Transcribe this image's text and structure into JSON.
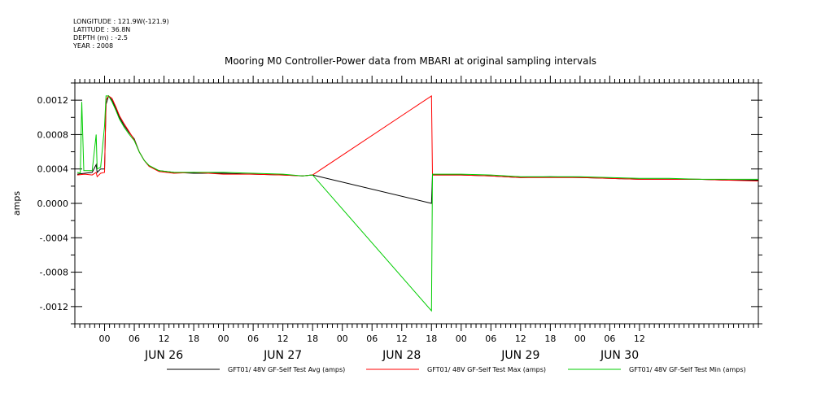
{
  "meta": {
    "longitude": "LONGITUDE : 121.9W(-121.9)",
    "latitude": "LATITUDE : 36.8N",
    "depth": "DEPTH (m) : -2.5",
    "year": "YEAR : 2008"
  },
  "chart_data": {
    "type": "line",
    "title": "Mooring M0 Controller-Power data from MBARI at original sampling intervals",
    "xlabel": "",
    "ylabel": "amps",
    "x_unit": "hours since JUN 25 18:00 (2008)",
    "xlim": [
      0,
      138
    ],
    "ylim": [
      -0.0014,
      0.0014
    ],
    "yticks": [
      0.0012,
      0.0008,
      0.0004,
      0.0,
      -0.0004,
      -0.0008,
      -0.0012
    ],
    "ytick_labels": [
      "0.0012",
      "0.0008",
      "0.0004",
      "0.0000",
      "-.0004",
      "-.0008",
      "-.0012"
    ],
    "xticks": [
      {
        "t": 6,
        "label": "00"
      },
      {
        "t": 12,
        "label": "06"
      },
      {
        "t": 18,
        "label": "12"
      },
      {
        "t": 24,
        "label": "18"
      },
      {
        "t": 30,
        "label": "00"
      },
      {
        "t": 36,
        "label": "06"
      },
      {
        "t": 42,
        "label": "12"
      },
      {
        "t": 48,
        "label": "18"
      },
      {
        "t": 54,
        "label": "00"
      },
      {
        "t": 60,
        "label": "06"
      },
      {
        "t": 66,
        "label": "12"
      },
      {
        "t": 72,
        "label": "18"
      },
      {
        "t": 78,
        "label": "00"
      },
      {
        "t": 84,
        "label": "06"
      },
      {
        "t": 90,
        "label": "12"
      },
      {
        "t": 96,
        "label": "18"
      },
      {
        "t": 102,
        "label": "00"
      },
      {
        "t": 108,
        "label": "06"
      },
      {
        "t": 114,
        "label": "12"
      }
    ],
    "day_labels": [
      {
        "t": 18,
        "label": "JUN 26"
      },
      {
        "t": 42,
        "label": "JUN 27"
      },
      {
        "t": 66,
        "label": "JUN 28"
      },
      {
        "t": 90,
        "label": "JUN 29"
      },
      {
        "t": 110,
        "label": "JUN 30"
      }
    ],
    "series": [
      {
        "name": "GFT01/ 48V GF-Self Test Avg (amps)",
        "color": "#000000",
        "points": [
          [
            0.5,
            0.00034
          ],
          [
            2,
            0.00035
          ],
          [
            3.5,
            0.00036
          ],
          [
            4.3,
            0.00045
          ],
          [
            4.5,
            0.00036
          ],
          [
            5.2,
            0.0004
          ],
          [
            6,
            0.0004
          ],
          [
            6.3,
            0.00115
          ],
          [
            6.8,
            0.00125
          ],
          [
            7.5,
            0.0012
          ],
          [
            8.3,
            0.0011
          ],
          [
            9,
            0.001
          ],
          [
            10,
            0.0009
          ],
          [
            11,
            0.00082
          ],
          [
            12,
            0.00075
          ],
          [
            13,
            0.0006
          ],
          [
            14,
            0.0005
          ],
          [
            15,
            0.00043
          ],
          [
            17,
            0.00038
          ],
          [
            20,
            0.00036
          ],
          [
            24,
            0.00035
          ],
          [
            30,
            0.00035
          ],
          [
            36,
            0.00034
          ],
          [
            42,
            0.00033
          ],
          [
            46,
            0.00032
          ],
          [
            48,
            0.00033
          ],
          [
            72,
            0.0
          ],
          [
            72.2,
            0.00033
          ],
          [
            78,
            0.00033
          ],
          [
            84,
            0.00032
          ],
          [
            90,
            0.0003
          ],
          [
            96,
            0.00031
          ],
          [
            102,
            0.0003
          ],
          [
            108,
            0.00029
          ],
          [
            114,
            0.00028
          ],
          [
            120,
            0.00028
          ],
          [
            126,
            0.00028
          ],
          [
            132,
            0.00027
          ],
          [
            138,
            0.00027
          ]
        ]
      },
      {
        "name": "GFT01/ 48V GF-Self Test Max (amps)",
        "color": "#ff0000",
        "points": [
          [
            0.5,
            0.00033
          ],
          [
            2,
            0.00034
          ],
          [
            3.5,
            0.00033
          ],
          [
            4.3,
            0.00036
          ],
          [
            4.5,
            0.00031
          ],
          [
            5.2,
            0.00035
          ],
          [
            6,
            0.00036
          ],
          [
            6.3,
            0.0012
          ],
          [
            6.8,
            0.00125
          ],
          [
            7.5,
            0.00122
          ],
          [
            8.3,
            0.00112
          ],
          [
            9,
            0.00102
          ],
          [
            10,
            0.00092
          ],
          [
            11,
            0.00083
          ],
          [
            12,
            0.00074
          ],
          [
            13,
            0.0006
          ],
          [
            14,
            0.0005
          ],
          [
            15,
            0.00043
          ],
          [
            17,
            0.00037
          ],
          [
            20,
            0.00035
          ],
          [
            24,
            0.00036
          ],
          [
            30,
            0.00034
          ],
          [
            36,
            0.00034
          ],
          [
            42,
            0.00033
          ],
          [
            46,
            0.00032
          ],
          [
            48,
            0.00033
          ],
          [
            72,
            0.00125
          ],
          [
            72.2,
            0.00033
          ],
          [
            78,
            0.00033
          ],
          [
            84,
            0.00032
          ],
          [
            90,
            0.0003
          ],
          [
            96,
            0.0003
          ],
          [
            102,
            0.0003
          ],
          [
            108,
            0.00029
          ],
          [
            114,
            0.00028
          ],
          [
            120,
            0.00028
          ],
          [
            126,
            0.00028
          ],
          [
            132,
            0.00027
          ],
          [
            138,
            0.00026
          ]
        ]
      },
      {
        "name": "GFT01/ 48V GF-Self Test Min (amps)",
        "color": "#00cc00",
        "points": [
          [
            0.5,
            0.00036
          ],
          [
            1.1,
            0.00035
          ],
          [
            1.4,
            0.00118
          ],
          [
            1.8,
            0.00038
          ],
          [
            3.5,
            0.00038
          ],
          [
            4.3,
            0.0008
          ],
          [
            4.5,
            0.0004
          ],
          [
            5.2,
            0.00042
          ],
          [
            6,
            0.0009
          ],
          [
            6.3,
            0.00125
          ],
          [
            6.8,
            0.00125
          ],
          [
            7.5,
            0.00118
          ],
          [
            8.3,
            0.00108
          ],
          [
            9,
            0.00098
          ],
          [
            10,
            0.00088
          ],
          [
            11,
            0.0008
          ],
          [
            12,
            0.00073
          ],
          [
            13,
            0.0006
          ],
          [
            14,
            0.0005
          ],
          [
            15,
            0.00044
          ],
          [
            17,
            0.00038
          ],
          [
            20,
            0.00036
          ],
          [
            24,
            0.00036
          ],
          [
            30,
            0.00036
          ],
          [
            36,
            0.00035
          ],
          [
            42,
            0.00034
          ],
          [
            46,
            0.00032
          ],
          [
            48,
            0.00033
          ],
          [
            72,
            -0.00125
          ],
          [
            72.2,
            0.00034
          ],
          [
            78,
            0.00034
          ],
          [
            84,
            0.00033
          ],
          [
            90,
            0.00031
          ],
          [
            96,
            0.00031
          ],
          [
            102,
            0.00031
          ],
          [
            108,
            0.0003
          ],
          [
            114,
            0.00029
          ],
          [
            120,
            0.00029
          ],
          [
            126,
            0.00028
          ],
          [
            132,
            0.00028
          ],
          [
            138,
            0.00028
          ]
        ]
      }
    ],
    "grid": false,
    "legend": "bottom"
  }
}
